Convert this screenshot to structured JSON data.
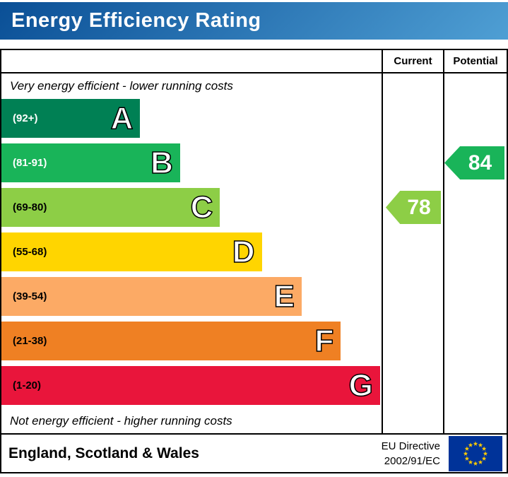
{
  "header": {
    "title": "Energy Efficiency Rating",
    "bg_from": "#0a4f96",
    "bg_to": "#4f9fd4"
  },
  "columns": {
    "current_label": "Current",
    "potential_label": "Potential"
  },
  "chart": {
    "top_note": "Very energy efficient - lower running costs",
    "bottom_note": "Not energy efficient - higher running costs",
    "bands": [
      {
        "letter": "A",
        "range": "(92+)",
        "color": "#008054",
        "text_color": "#ffffff",
        "width_pct": 36.5
      },
      {
        "letter": "B",
        "range": "(81-91)",
        "color": "#19b459",
        "text_color": "#ffffff",
        "width_pct": 47.0
      },
      {
        "letter": "C",
        "range": "(69-80)",
        "color": "#8dce46",
        "text_color": "#000000",
        "width_pct": 57.5
      },
      {
        "letter": "D",
        "range": "(55-68)",
        "color": "#ffd500",
        "text_color": "#000000",
        "width_pct": 68.5
      },
      {
        "letter": "E",
        "range": "(39-54)",
        "color": "#fcaa65",
        "text_color": "#000000",
        "width_pct": 79.0
      },
      {
        "letter": "F",
        "range": "(21-38)",
        "color": "#ef8023",
        "text_color": "#000000",
        "width_pct": 89.3
      },
      {
        "letter": "G",
        "range": "(1-20)",
        "color": "#e9153b",
        "text_color": "#000000",
        "width_pct": 99.6
      }
    ],
    "current": {
      "value": "78",
      "band_index": 2,
      "color": "#8dce46"
    },
    "potential": {
      "value": "84",
      "band_index": 1,
      "color": "#19b459"
    }
  },
  "chart_data": {
    "type": "bar",
    "title": "Energy Efficiency Rating",
    "categories": [
      "A",
      "B",
      "C",
      "D",
      "E",
      "F",
      "G"
    ],
    "ranges": [
      "92+",
      "81-91",
      "69-80",
      "55-68",
      "39-54",
      "21-38",
      "1-20"
    ],
    "bar_widths_pct": [
      36.5,
      47.0,
      57.5,
      68.5,
      79.0,
      89.3,
      99.6
    ],
    "values": {
      "current": 78,
      "potential": 84
    },
    "current_band": "C",
    "potential_band": "B",
    "top_annotation": "Very energy efficient - lower running costs",
    "bottom_annotation": "Not energy efficient - higher running costs",
    "legend_position": "right-columns"
  },
  "footer": {
    "region": "England, Scotland & Wales",
    "directive_line1": "EU Directive",
    "directive_line2": "2002/91/EC",
    "eu_flag": {
      "bg": "#003399",
      "star": "#ffcc00"
    }
  }
}
